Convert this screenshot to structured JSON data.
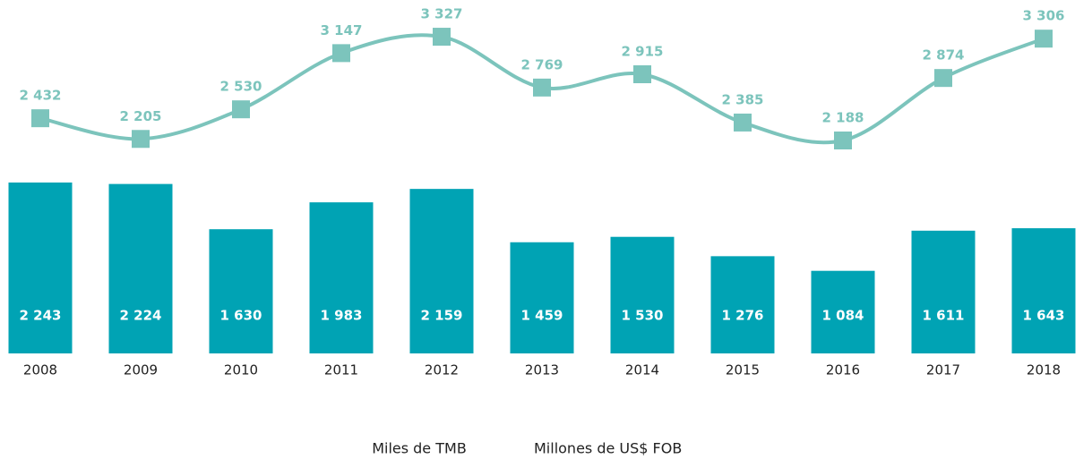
{
  "chart_data": {
    "type": "bar-line",
    "categories": [
      "2008",
      "2009",
      "2010",
      "2011",
      "2012",
      "2013",
      "2014",
      "2015",
      "2016",
      "2017",
      "2018"
    ],
    "series": [
      {
        "name": "Miles de TMB",
        "color": "#00a3b4",
        "type": "bar",
        "values": [
          2243,
          2224,
          1630,
          1983,
          2159,
          1459,
          1530,
          1276,
          1084,
          1611,
          1643
        ],
        "value_labels": [
          "2 243",
          "2 224",
          "1 630",
          "1 983",
          "2 159",
          "1 459",
          "1 530",
          "1 276",
          "1 084",
          "1 611",
          "1 643"
        ]
      },
      {
        "name": "Millones de US$ FOB",
        "color": "#7cc4bc",
        "type": "line",
        "values": [
          2432,
          2205,
          2530,
          3147,
          3327,
          2769,
          2915,
          2385,
          2188,
          2874,
          3306
        ],
        "value_labels": [
          "2 432",
          "2 205",
          "2 530",
          "3 147",
          "3 327",
          "2 769",
          "2 915",
          "2 385",
          "2 188",
          "2 874",
          "3 306"
        ]
      }
    ]
  }
}
